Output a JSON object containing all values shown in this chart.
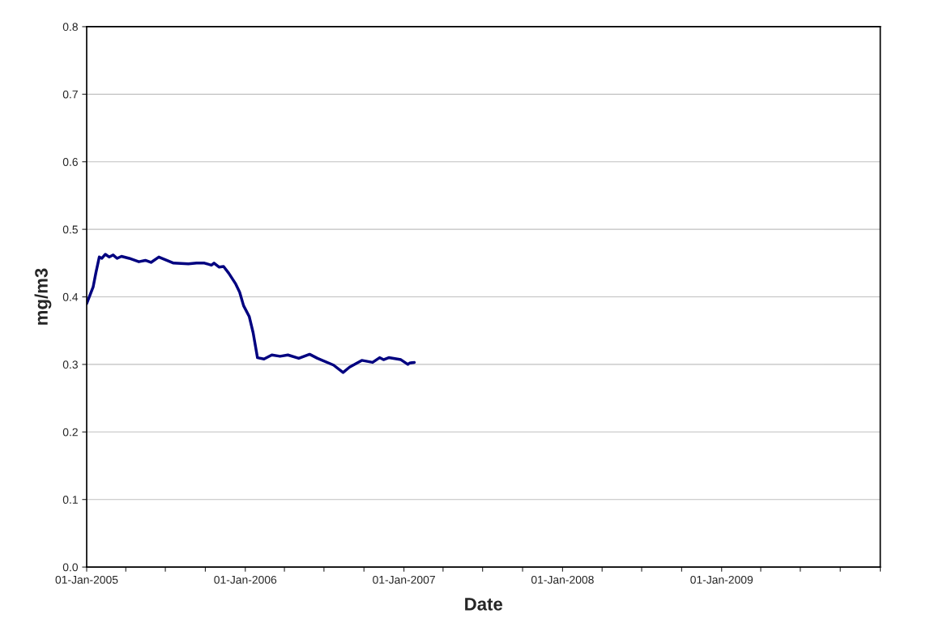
{
  "chart_data": {
    "type": "line",
    "xlabel": "Date",
    "ylabel": "mg/m3",
    "x": [
      "2005-01-01",
      "2005-01-16",
      "2005-01-22",
      "2005-01-30",
      "2005-02-05",
      "2005-02-13",
      "2005-02-22",
      "2005-03-03",
      "2005-03-12",
      "2005-03-22",
      "2005-04-09",
      "2005-05-01",
      "2005-05-16",
      "2005-05-29",
      "2005-06-16",
      "2005-07-20",
      "2005-08-23",
      "2005-09-11",
      "2005-09-29",
      "2005-10-15",
      "2005-10-21",
      "2005-11-02",
      "2005-11-12",
      "2005-11-24",
      "2005-12-10",
      "2005-12-19",
      "2005-12-28",
      "2006-01-10",
      "2006-01-19",
      "2006-01-29",
      "2006-02-13",
      "2006-03-03",
      "2006-03-22",
      "2006-04-09",
      "2006-05-04",
      "2006-05-29",
      "2006-06-16",
      "2006-07-23",
      "2006-08-14",
      "2006-08-29",
      "2006-09-26",
      "2006-10-21",
      "2006-11-06",
      "2006-11-15",
      "2006-11-27",
      "2006-12-25",
      "2007-01-10",
      "2007-01-14",
      "2007-01-25"
    ],
    "series": [
      {
        "color": "#000080",
        "values": [
          0.39,
          0.415,
          0.435,
          0.459,
          0.457,
          0.463,
          0.459,
          0.462,
          0.457,
          0.46,
          0.457,
          0.452,
          0.454,
          0.451,
          0.459,
          0.45,
          0.449,
          0.45,
          0.45,
          0.447,
          0.45,
          0.444,
          0.445,
          0.435,
          0.419,
          0.407,
          0.387,
          0.371,
          0.347,
          0.31,
          0.308,
          0.314,
          0.312,
          0.314,
          0.309,
          0.315,
          0.309,
          0.299,
          0.288,
          0.296,
          0.306,
          0.303,
          0.31,
          0.307,
          0.31,
          0.307,
          0.3,
          0.302,
          0.303
        ]
      }
    ],
    "xlim": [
      "2005-01-01",
      "2010-01-01"
    ],
    "xticks": [
      {
        "value": "2005-01-01",
        "label": "01-Jan-2005"
      },
      {
        "value": "2005-04-01",
        "label": null
      },
      {
        "value": "2005-07-01",
        "label": null
      },
      {
        "value": "2005-10-01",
        "label": null
      },
      {
        "value": "2006-01-01",
        "label": "01-Jan-2006"
      },
      {
        "value": "2006-04-01",
        "label": null
      },
      {
        "value": "2006-07-01",
        "label": null
      },
      {
        "value": "2006-10-01",
        "label": null
      },
      {
        "value": "2007-01-01",
        "label": "01-Jan-2007"
      },
      {
        "value": "2007-04-01",
        "label": null
      },
      {
        "value": "2007-07-01",
        "label": null
      },
      {
        "value": "2007-10-01",
        "label": null
      },
      {
        "value": "2008-01-01",
        "label": "01-Jan-2008"
      },
      {
        "value": "2008-04-01",
        "label": null
      },
      {
        "value": "2008-07-01",
        "label": null
      },
      {
        "value": "2008-10-01",
        "label": null
      },
      {
        "value": "2009-01-01",
        "label": "01-Jan-2009"
      },
      {
        "value": "2009-04-01",
        "label": null
      },
      {
        "value": "2009-07-01",
        "label": null
      },
      {
        "value": "2009-10-01",
        "label": null
      },
      {
        "value": "2010-01-01",
        "label": null
      }
    ],
    "ylim": [
      0,
      0.8
    ],
    "yticks": [
      {
        "value": 0,
        "label": "0.0"
      },
      0.1,
      0.2,
      0.3,
      0.4,
      0.5,
      0.6,
      0.7,
      0.8
    ],
    "grid": "y",
    "marker": "none",
    "line_style": "solid"
  }
}
